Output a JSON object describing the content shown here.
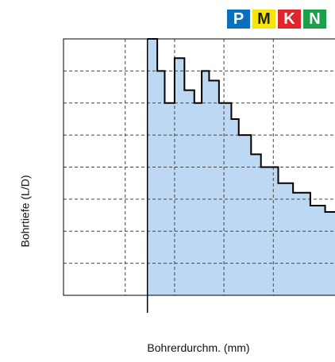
{
  "badges": [
    {
      "letter": "P",
      "bg": "#0a70bd",
      "fg": "#ffffff"
    },
    {
      "letter": "M",
      "bg": "#f5e50f",
      "fg": "#222222"
    },
    {
      "letter": "K",
      "bg": "#e0262c",
      "fg": "#ffffff"
    },
    {
      "letter": "N",
      "bg": "#1aa14a",
      "fg": "#ffffff"
    }
  ],
  "colors": {
    "fill": "#bcd8f2",
    "step_line": "#000000",
    "grid": "#444444"
  },
  "chart_data": {
    "type": "area",
    "xlabel": "Bohrerdurchm. (mm)",
    "ylabel": "Bohrtiefe (L/D)",
    "xlim": [
      0,
      11
    ],
    "ylim": [
      0,
      8
    ],
    "grid": "dashed",
    "x_gridlines": [
      2.5,
      4.5,
      6.5,
      8.5
    ],
    "y_gridlines": [
      1,
      2,
      3,
      4,
      5,
      6,
      7
    ],
    "vertical_marker_x": 3.4,
    "step_series": {
      "x": [
        3.4,
        3.8,
        4.1,
        4.5,
        4.9,
        5.3,
        5.6,
        5.9,
        6.3,
        6.8,
        7.1,
        7.6,
        8.0,
        8.7,
        9.3,
        10.0,
        10.6,
        11.0
      ],
      "y": [
        8.0,
        7.0,
        6.0,
        7.4,
        6.4,
        6.0,
        7.0,
        6.7,
        6.0,
        5.5,
        5.0,
        4.4,
        4.0,
        3.5,
        3.2,
        2.8,
        2.6,
        2.6
      ]
    }
  }
}
